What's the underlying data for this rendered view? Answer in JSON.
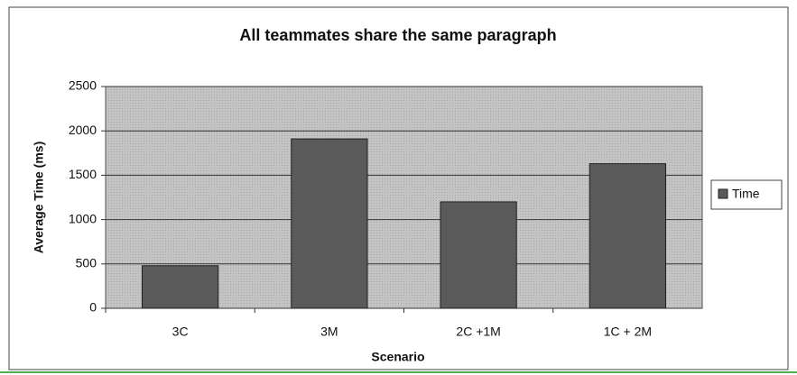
{
  "chart_data": {
    "type": "bar",
    "title": "All teammates share the same paragraph",
    "x_label": "Scenario",
    "y_label": "Average Time (ms)",
    "categories": [
      "3C",
      "3M",
      "2C +1M",
      "1C + 2M"
    ],
    "series": [
      {
        "name": "Time",
        "color": "#5a5a5a",
        "values": [
          480,
          1910,
          1200,
          1630
        ]
      }
    ],
    "ylim": [
      0,
      2500
    ],
    "yticks": [
      0,
      500,
      1000,
      1500,
      2000,
      2500
    ],
    "grid": true,
    "legend": "right"
  }
}
